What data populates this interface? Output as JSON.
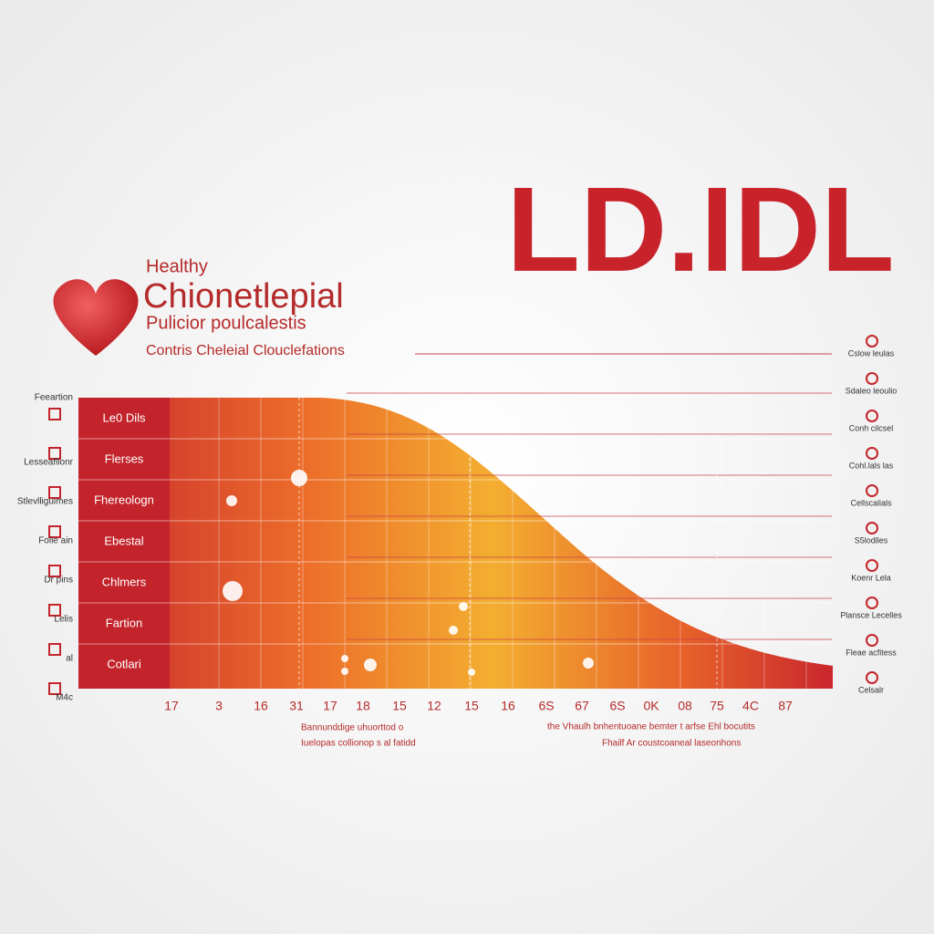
{
  "header": {
    "big_title": "LD.IDL",
    "kicker": "Healthy",
    "title": "Chionetlepial",
    "subtitle": "Pulicior poulcalestis",
    "caption": "Contris Cheleial Clouclefations"
  },
  "rows": [
    "Le0 Dils",
    "Flerses",
    "Fhereologn",
    "Ebestal",
    "Chlmers",
    "Fartion",
    "Cotlari"
  ],
  "left_labels": [
    "Feeartion",
    "Lesseaflionr",
    "Stlevlliguimes",
    "Folie ain",
    "Dr pins",
    "Lelis",
    "al",
    "M4c"
  ],
  "right_labels": [
    "Cslow leulas",
    "Sdaleo leoulio",
    "Conh cilcsel",
    "Cohl.lals las",
    "Cellscalials",
    "S5lodlles",
    "Koenr Lela",
    "Plansce Lecelles",
    "Fleae acfitess",
    "Celsalr"
  ],
  "x_labels": [
    "17",
    "3",
    "16",
    "31",
    "17",
    "18",
    "15",
    "12",
    "15",
    "16",
    "6S",
    "67",
    "6S",
    "0K",
    "08",
    "75",
    "4C",
    "87"
  ],
  "notes": [
    "Bannunddige uhuorttod o",
    "Iuelopas collionop s al fatidd",
    "the Vhaulh bnhentuoane bemter t arfse Ehl bocutits",
    "Fhailf Ar coustcoaneal laseonhons"
  ]
}
